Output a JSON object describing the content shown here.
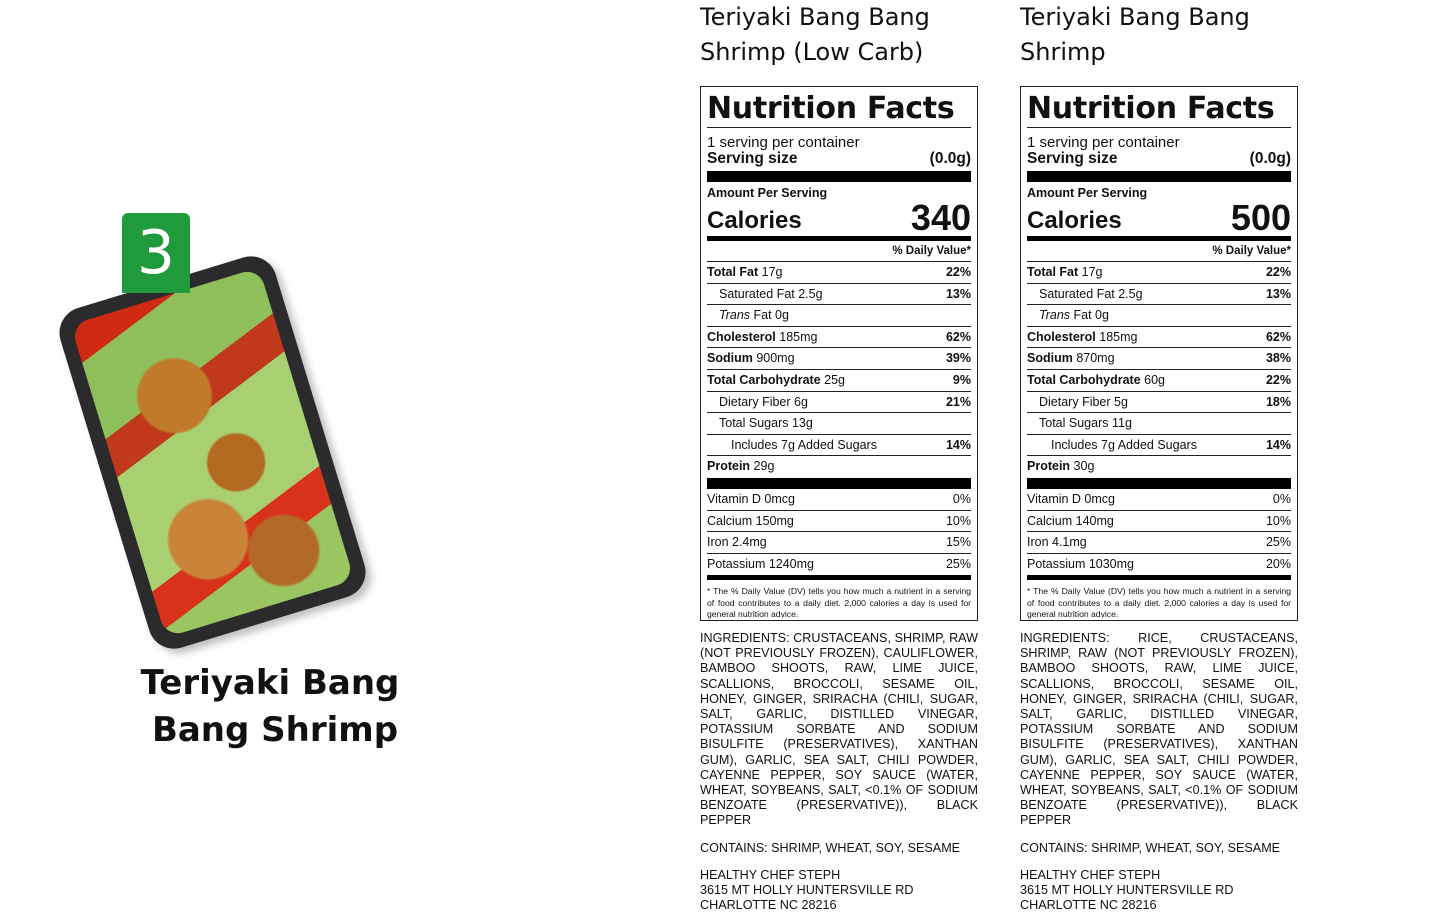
{
  "meal": {
    "badge": "3",
    "title_line1": "Teriyaki Bang",
    "title_line2": "Bang Shrimp"
  },
  "products": [
    {
      "title_line1": "Teriyaki Bang Bang",
      "title_line2": "Shrimp (Low Carb)",
      "label": {
        "heading": "Nutrition Facts",
        "servings": "1 serving per container",
        "serving_size_label": "Serving size",
        "serving_size": "(0.0g)",
        "amount_per_serving": "Amount Per Serving",
        "calories_label": "Calories",
        "calories": "340",
        "dv_header": "% Daily Value*",
        "rows": [
          {
            "name": "Total Fat",
            "amount": "17g",
            "dv": "22%"
          },
          {
            "name": "Saturated Fat",
            "amount": "2.5g",
            "dv": "13%"
          },
          {
            "name": "Trans",
            "amount": "Fat 0g",
            "dv": ""
          },
          {
            "name": "Cholesterol",
            "amount": "185mg",
            "dv": "62%"
          },
          {
            "name": "Sodium",
            "amount": "900mg",
            "dv": "39%"
          },
          {
            "name": "Total Carbohydrate",
            "amount": "25g",
            "dv": "9%"
          },
          {
            "name": "Dietary Fiber",
            "amount": "6g",
            "dv": "21%"
          },
          {
            "name": "Total Sugars",
            "amount": "13g",
            "dv": ""
          },
          {
            "name": "Includes 7g Added Sugars",
            "amount": "",
            "dv": "14%"
          },
          {
            "name": "Protein",
            "amount": "29g",
            "dv": ""
          }
        ],
        "vitamins": [
          {
            "name": "Vitamin D 0mcg",
            "dv": "0%"
          },
          {
            "name": "Calcium 150mg",
            "dv": "10%"
          },
          {
            "name": "Iron 2.4mg",
            "dv": "15%"
          },
          {
            "name": "Potassium 1240mg",
            "dv": "25%"
          }
        ],
        "footnote": "* The % Daily Value (DV) tells you how much a nutrient in a serving of food contributes to a daily diet. 2,000 calories a day is used for general nutrition advice."
      },
      "ingredients": "INGREDIENTS: CRUSTACEANS, SHRIMP, RAW (NOT PREVIOUSLY FROZEN), CAULIFLOWER, BAMBOO SHOOTS, RAW, LIME JUICE, SCALLIONS, BROCCOLI, SESAME OIL, HONEY, GINGER, SRIRACHA (CHILI, SUGAR, SALT, GARLIC, DISTILLED VINEGAR, POTASSIUM SORBATE AND SODIUM BISULFITE (PRESERVATIVES), XANTHAN GUM), GARLIC, SEA SALT, CHILI POWDER, CAYENNE PEPPER, SOY SAUCE (WATER, WHEAT, SOYBEANS, SALT, <0.1% OF SODIUM BENZOATE (PRESERVATIVE)), BLACK PEPPER",
      "contains": "CONTAINS: SHRIMP, WHEAT, SOY, SESAME",
      "address": [
        "HEALTHY CHEF STEPH",
        "3615 MT HOLLY HUNTERSVILLE RD",
        "CHARLOTTE NC 28216"
      ]
    },
    {
      "title_line1": "Teriyaki Bang Bang",
      "title_line2": "Shrimp",
      "label": {
        "heading": "Nutrition Facts",
        "servings": "1 serving per container",
        "serving_size_label": "Serving size",
        "serving_size": "(0.0g)",
        "amount_per_serving": "Amount Per Serving",
        "calories_label": "Calories",
        "calories": "500",
        "dv_header": "% Daily Value*",
        "rows": [
          {
            "name": "Total Fat",
            "amount": "17g",
            "dv": "22%"
          },
          {
            "name": "Saturated Fat",
            "amount": "2.5g",
            "dv": "13%"
          },
          {
            "name": "Trans",
            "amount": "Fat 0g",
            "dv": ""
          },
          {
            "name": "Cholesterol",
            "amount": "185mg",
            "dv": "62%"
          },
          {
            "name": "Sodium",
            "amount": "870mg",
            "dv": "38%"
          },
          {
            "name": "Total Carbohydrate",
            "amount": "60g",
            "dv": "22%"
          },
          {
            "name": "Dietary Fiber",
            "amount": "5g",
            "dv": "18%"
          },
          {
            "name": "Total Sugars",
            "amount": "11g",
            "dv": ""
          },
          {
            "name": "Includes 7g Added Sugars",
            "amount": "",
            "dv": "14%"
          },
          {
            "name": "Protein",
            "amount": "30g",
            "dv": ""
          }
        ],
        "vitamins": [
          {
            "name": "Vitamin D 0mcg",
            "dv": "0%"
          },
          {
            "name": "Calcium 140mg",
            "dv": "10%"
          },
          {
            "name": "Iron 4.1mg",
            "dv": "25%"
          },
          {
            "name": "Potassium 1030mg",
            "dv": "20%"
          }
        ],
        "footnote": "* The % Daily Value (DV) tells you how much a nutrient in a serving of food contributes to a daily diet. 2,000 calories a day is used for general nutrition advice."
      },
      "ingredients": "INGREDIENTS: RICE, CRUSTACEANS, SHRIMP, RAW (NOT PREVIOUSLY FROZEN), BAMBOO SHOOTS, RAW, LIME JUICE, SCALLIONS, BROCCOLI, SESAME OIL, HONEY, GINGER, SRIRACHA (CHILI, SUGAR, SALT, GARLIC, DISTILLED VINEGAR, POTASSIUM SORBATE AND SODIUM BISULFITE (PRESERVATIVES), XANTHAN GUM), GARLIC, SEA SALT, CHILI POWDER, CAYENNE PEPPER, SOY SAUCE (WATER, WHEAT, SOYBEANS, SALT, <0.1% OF SODIUM BENZOATE (PRESERVATIVE)), BLACK PEPPER",
      "contains": "CONTAINS: SHRIMP, WHEAT, SOY, SESAME",
      "address": [
        "HEALTHY CHEF STEPH",
        "3615 MT HOLLY HUNTERSVILLE RD",
        "CHARLOTTE NC 28216"
      ]
    }
  ]
}
